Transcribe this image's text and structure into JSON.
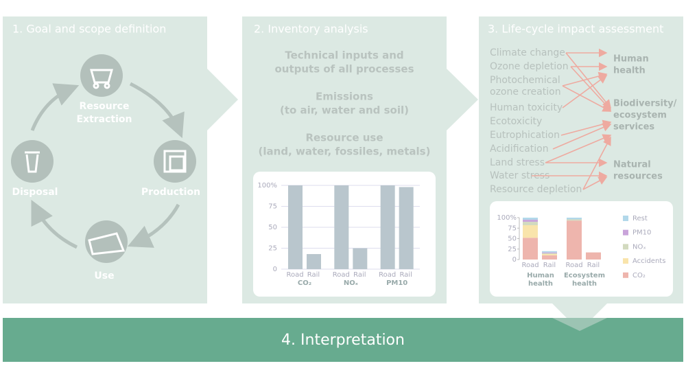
{
  "panels": [
    {
      "title": "1. Goal and scope definition"
    },
    {
      "title": "2. Inventory analysis"
    },
    {
      "title": "3. Life-cycle impact assessment"
    }
  ],
  "cycle": [
    [
      "Resource",
      "Extraction"
    ],
    [
      "Production"
    ],
    [
      "Use"
    ],
    [
      "Disposal"
    ]
  ],
  "inventory": [
    [
      "Technical inputs and",
      "outputs of all processes"
    ],
    [
      "Emissions",
      "(to air, water and soil)"
    ],
    [
      "Resource use",
      "(land, water, fossiles, metals)"
    ]
  ],
  "inventory_chart": {
    "type": "bar",
    "groups": [
      "CO₂",
      "NOₓ",
      "PM10"
    ],
    "subcategories": [
      "Road",
      "Rail"
    ],
    "values": [
      [
        100,
        18
      ],
      [
        100,
        25
      ],
      [
        100,
        98
      ]
    ],
    "color": "#b9c6cd",
    "ylim": [
      0,
      100
    ],
    "yticks": [
      0,
      25,
      50,
      75,
      {
        "value": 100,
        "label": "100%"
      }
    ]
  },
  "impacts": [
    "Climate change",
    "Ozone depletion",
    "Photochemical ozone creation",
    "Human toxicity",
    "Ecotoxicity",
    "Eutrophication",
    "Acidification",
    "Land stress",
    "Water stress",
    "Resource depletion"
  ],
  "endpoints": [
    [
      "Human",
      "health"
    ],
    [
      "Biodiversity/",
      "ecosystem",
      "services"
    ],
    [
      "Natural",
      "resources"
    ]
  ],
  "impact_chart": {
    "type": "stacked_bar",
    "groups": [
      [
        "Human",
        "health"
      ],
      [
        "Ecosystem",
        "health"
      ]
    ],
    "subcategories": [
      "Road",
      "Rail"
    ],
    "series": [
      {
        "name": "Rest",
        "color": "#b2d8ea",
        "values": [
          5,
          3,
          4,
          0
        ]
      },
      {
        "name": "PM10",
        "color": "#c9a4da",
        "values": [
          5,
          2,
          0,
          0
        ]
      },
      {
        "name": "NOₓ",
        "color": "#d2dabf",
        "values": [
          8,
          2,
          3,
          0
        ]
      },
      {
        "name": "Accidents",
        "color": "#f9e4ab",
        "values": [
          30,
          3,
          0,
          0
        ]
      },
      {
        "name": "CO₂",
        "color": "#eeb5ad",
        "values": [
          52,
          10,
          93,
          17
        ]
      }
    ],
    "ylim": [
      0,
      100
    ],
    "yticks": [
      0,
      25,
      50,
      75,
      {
        "value": 100,
        "label": "100%"
      }
    ]
  },
  "interpretation": "4. Interpretation"
}
